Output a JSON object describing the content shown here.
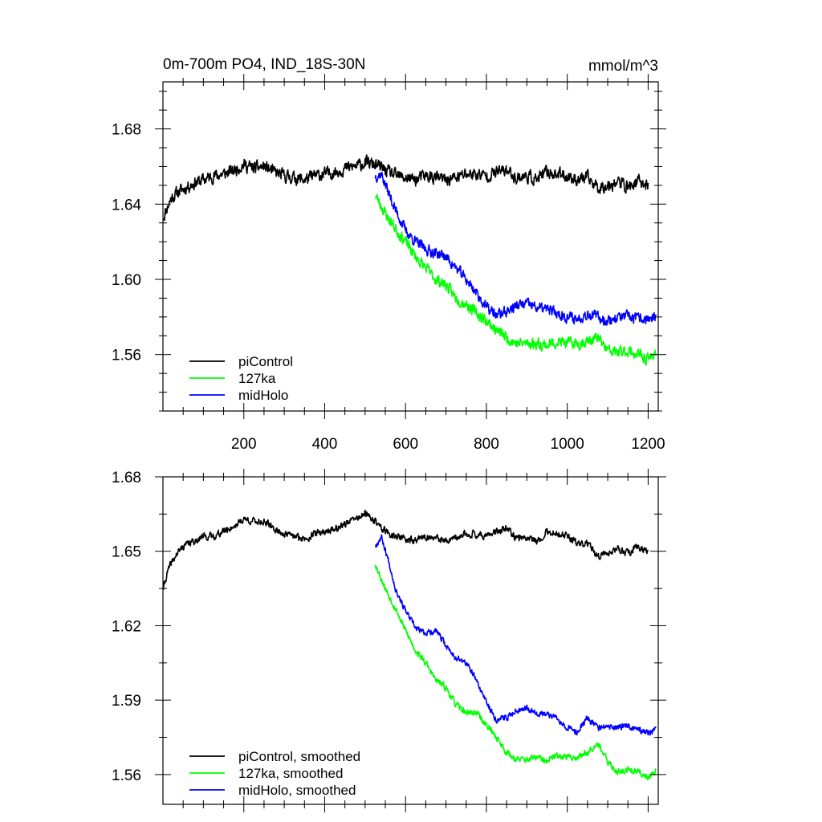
{
  "colors": {
    "picontrol": "#000000",
    "ka127": "#00ff00",
    "midholo": "#0000ff",
    "axis": "#000000"
  },
  "chart_data": [
    {
      "type": "line",
      "title": "0m-700m PO4, IND_18S-30N",
      "units": "mmol/m^3",
      "xlabel": "",
      "ylabel": "",
      "xlim": [
        0,
        1225
      ],
      "ylim": [
        1.53,
        1.705
      ],
      "xticks": [
        200,
        400,
        600,
        800,
        1000,
        1200
      ],
      "xtick_labels": [
        "200",
        "400",
        "600",
        "800",
        "1000",
        "1200"
      ],
      "yticks": [
        1.56,
        1.6,
        1.64,
        1.68
      ],
      "ytick_labels": [
        "1.56",
        "1.60",
        "1.64",
        "1.68"
      ],
      "legend_position": "bottom-left",
      "series": [
        {
          "name": "piControl",
          "color_key": "picontrol",
          "x": [
            1,
            10,
            20,
            35,
            50,
            75,
            100,
            125,
            150,
            175,
            200,
            225,
            250,
            275,
            300,
            325,
            350,
            375,
            400,
            425,
            450,
            475,
            500,
            525,
            550,
            575,
            600,
            625,
            650,
            675,
            700,
            725,
            750,
            775,
            800,
            825,
            850,
            875,
            900,
            925,
            950,
            975,
            1000,
            1025,
            1050,
            1075,
            1100,
            1125,
            1150,
            1175,
            1200
          ],
          "y": [
            1.633,
            1.638,
            1.643,
            1.646,
            1.648,
            1.651,
            1.653,
            1.655,
            1.656,
            1.658,
            1.661,
            1.659,
            1.66,
            1.657,
            1.655,
            1.654,
            1.653,
            1.655,
            1.656,
            1.657,
            1.659,
            1.66,
            1.662,
            1.661,
            1.658,
            1.655,
            1.654,
            1.653,
            1.655,
            1.654,
            1.653,
            1.654,
            1.656,
            1.656,
            1.655,
            1.657,
            1.658,
            1.654,
            1.655,
            1.653,
            1.657,
            1.656,
            1.655,
            1.653,
            1.654,
            1.649,
            1.65,
            1.652,
            1.649,
            1.652,
            1.65
          ],
          "noise": 0.0052,
          "seed": 11
        },
        {
          "name": "127ka",
          "color_key": "ka127",
          "x": [
            525,
            550,
            575,
            600,
            625,
            650,
            675,
            700,
            725,
            750,
            775,
            800,
            825,
            850,
            875,
            900,
            925,
            950,
            975,
            1000,
            1025,
            1050,
            1075,
            1100,
            1125,
            1150,
            1175,
            1200,
            1220
          ],
          "y": [
            1.645,
            1.635,
            1.627,
            1.62,
            1.612,
            1.606,
            1.6,
            1.597,
            1.59,
            1.587,
            1.582,
            1.578,
            1.573,
            1.569,
            1.566,
            1.566,
            1.566,
            1.565,
            1.567,
            1.566,
            1.566,
            1.567,
            1.569,
            1.562,
            1.561,
            1.562,
            1.56,
            1.557,
            1.562
          ],
          "noise": 0.0048,
          "seed": 23
        },
        {
          "name": "midHolo",
          "color_key": "midholo",
          "x": [
            525,
            540,
            560,
            575,
            600,
            625,
            650,
            675,
            700,
            725,
            750,
            775,
            800,
            825,
            850,
            875,
            900,
            925,
            950,
            975,
            1000,
            1025,
            1050,
            1075,
            1100,
            1125,
            1150,
            1175,
            1200,
            1220
          ],
          "y": [
            1.655,
            1.656,
            1.645,
            1.637,
            1.626,
            1.62,
            1.616,
            1.614,
            1.612,
            1.606,
            1.6,
            1.593,
            1.585,
            1.581,
            1.583,
            1.586,
            1.587,
            1.585,
            1.584,
            1.582,
            1.58,
            1.579,
            1.582,
            1.58,
            1.578,
            1.58,
            1.58,
            1.579,
            1.579,
            1.579
          ],
          "noise": 0.0045,
          "seed": 37
        }
      ],
      "legend": [
        "piControl",
        "127ka",
        "midHolo"
      ]
    },
    {
      "type": "line",
      "title": "",
      "xlabel": "",
      "ylabel": "",
      "xlim": [
        0,
        1225
      ],
      "ylim": [
        1.548,
        1.68
      ],
      "xticks": [
        200,
        400,
        600,
        800,
        1000,
        1200
      ],
      "yticks": [
        1.56,
        1.59,
        1.62,
        1.65,
        1.68
      ],
      "ytick_labels": [
        "1.56",
        "1.59",
        "1.62",
        "1.65",
        "1.68"
      ],
      "legend_position": "bottom-left",
      "series": [
        {
          "name": "piControl, smoothed",
          "color_key": "picontrol",
          "x": [
            1,
            10,
            20,
            35,
            50,
            75,
            100,
            125,
            150,
            175,
            200,
            225,
            250,
            275,
            300,
            325,
            350,
            375,
            400,
            425,
            450,
            475,
            500,
            525,
            550,
            575,
            600,
            625,
            650,
            675,
            700,
            725,
            750,
            775,
            800,
            825,
            850,
            875,
            900,
            925,
            950,
            975,
            1000,
            1025,
            1050,
            1075,
            1100,
            1125,
            1150,
            1175,
            1200
          ],
          "y": [
            1.635,
            1.641,
            1.645,
            1.649,
            1.652,
            1.654,
            1.656,
            1.656,
            1.658,
            1.66,
            1.663,
            1.662,
            1.662,
            1.659,
            1.657,
            1.656,
            1.655,
            1.657,
            1.658,
            1.659,
            1.661,
            1.663,
            1.665,
            1.662,
            1.658,
            1.656,
            1.655,
            1.654,
            1.656,
            1.655,
            1.654,
            1.655,
            1.657,
            1.657,
            1.656,
            1.658,
            1.659,
            1.655,
            1.656,
            1.654,
            1.658,
            1.657,
            1.656,
            1.653,
            1.653,
            1.648,
            1.649,
            1.651,
            1.649,
            1.652,
            1.65
          ],
          "noise": 0.0022,
          "seed": 41
        },
        {
          "name": "127ka, smoothed",
          "color_key": "ka127",
          "x": [
            525,
            550,
            575,
            600,
            625,
            650,
            675,
            700,
            725,
            750,
            775,
            800,
            825,
            850,
            875,
            900,
            925,
            950,
            975,
            1000,
            1025,
            1050,
            1075,
            1100,
            1125,
            1150,
            1175,
            1200,
            1220
          ],
          "y": [
            1.645,
            1.635,
            1.627,
            1.618,
            1.61,
            1.605,
            1.598,
            1.595,
            1.588,
            1.585,
            1.585,
            1.58,
            1.575,
            1.569,
            1.566,
            1.566,
            1.567,
            1.565,
            1.568,
            1.567,
            1.567,
            1.569,
            1.573,
            1.565,
            1.561,
            1.562,
            1.561,
            1.559,
            1.562
          ],
          "noise": 0.0021,
          "seed": 53
        },
        {
          "name": "midHolo, smoothed",
          "color_key": "midholo",
          "x": [
            525,
            540,
            560,
            575,
            600,
            625,
            650,
            675,
            700,
            725,
            750,
            775,
            800,
            825,
            850,
            875,
            900,
            925,
            950,
            975,
            1000,
            1025,
            1050,
            1075,
            1100,
            1125,
            1150,
            1175,
            1200,
            1220
          ],
          "y": [
            1.652,
            1.656,
            1.645,
            1.635,
            1.626,
            1.619,
            1.617,
            1.618,
            1.612,
            1.607,
            1.605,
            1.598,
            1.589,
            1.582,
            1.583,
            1.586,
            1.587,
            1.585,
            1.584,
            1.583,
            1.579,
            1.577,
            1.583,
            1.579,
            1.579,
            1.579,
            1.58,
            1.578,
            1.577,
            1.578
          ],
          "noise": 0.0019,
          "seed": 67
        }
      ],
      "legend": [
        "piControl, smoothed",
        "127ka, smoothed",
        "midHolo, smoothed"
      ]
    }
  ]
}
